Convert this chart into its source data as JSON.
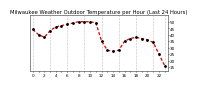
{
  "title": "Milwaukee Weather Outdoor Temperature per Hour (Last 24 Hours)",
  "hours": [
    0,
    1,
    2,
    3,
    4,
    5,
    6,
    7,
    8,
    9,
    10,
    11,
    12,
    13,
    14,
    15,
    16,
    17,
    18,
    19,
    20,
    21,
    22,
    23
  ],
  "temps": [
    44,
    40,
    38,
    43,
    46,
    47,
    48,
    49,
    50,
    50,
    50,
    49,
    35,
    28,
    27,
    28,
    35,
    37,
    38,
    37,
    36,
    34,
    25,
    16
  ],
  "line_color": "#dd0000",
  "marker_color": "#000000",
  "bg_color": "#ffffff",
  "grid_color": "#888888",
  "title_color": "#000000",
  "title_fontsize": 3.8,
  "tick_fontsize": 3.0,
  "ylim": [
    12,
    55
  ],
  "yticks": [
    15,
    20,
    25,
    30,
    35,
    40,
    45,
    50
  ],
  "vgrid_positions": [
    0,
    3,
    6,
    9,
    12,
    15,
    18,
    21,
    23
  ]
}
